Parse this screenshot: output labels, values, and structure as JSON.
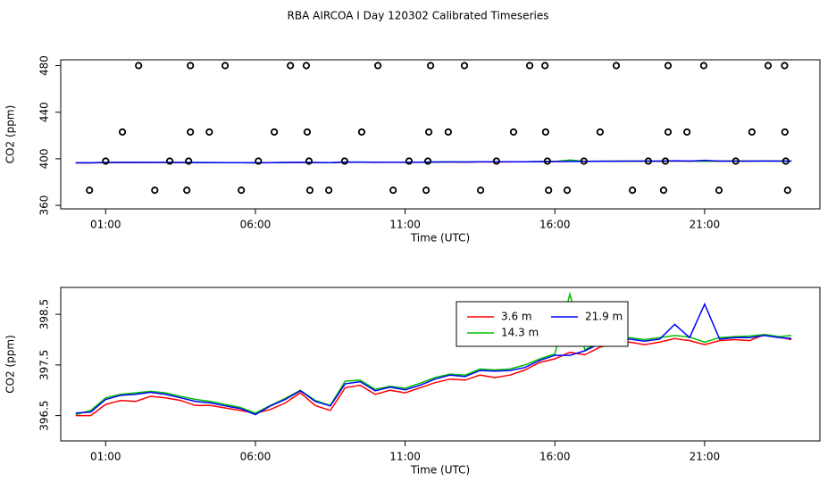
{
  "title": "RBA AIRCOA I  Day 120302  Calibrated Timeseries",
  "chart_data": [
    {
      "type": "scatter",
      "x_label": "Time (UTC)",
      "y_label": "CO2 (ppm)",
      "color": "#000000",
      "x": [
        2.1,
        3.83,
        4.99,
        7.17,
        7.7,
        10.09,
        11.85,
        12.98,
        15.16,
        15.67,
        18.05,
        19.78,
        20.97,
        23.12,
        23.67,
        1.56,
        3.83,
        4.46,
        6.63,
        7.73,
        9.55,
        11.79,
        12.44,
        14.62,
        15.69,
        17.51,
        19.78,
        20.41,
        22.58,
        23.68,
        1.0,
        3.14,
        3.77,
        6.1,
        7.79,
        8.98,
        11.13,
        11.76,
        14.05,
        15.75,
        16.97,
        19.12,
        19.69,
        22.04,
        23.71,
        0.46,
        2.64,
        3.71,
        5.53,
        7.82,
        8.45,
        10.6,
        11.7,
        13.52,
        15.79,
        16.41,
        18.59,
        19.63,
        21.48,
        23.77
      ],
      "values": [
        480,
        480,
        480,
        480,
        480,
        480,
        480,
        480,
        480,
        480,
        480,
        480,
        480,
        480,
        480,
        423,
        423,
        423,
        423,
        423,
        423,
        423,
        423,
        423,
        423,
        423,
        423,
        423,
        423,
        423,
        398,
        398,
        398,
        398,
        398,
        398,
        398,
        398,
        398,
        398,
        398,
        398,
        398,
        398,
        398,
        373,
        373,
        373,
        373,
        373,
        373,
        373,
        373,
        373,
        373,
        373,
        373,
        373,
        373,
        373
      ],
      "xlim": [
        -0.5,
        24.85
      ],
      "ylim": [
        357,
        485
      ],
      "xticks": [
        {
          "value": 1,
          "label": "01:00"
        },
        {
          "value": 6,
          "label": "06:00"
        },
        {
          "value": 11,
          "label": "11:00"
        },
        {
          "value": 16,
          "label": "16:00"
        },
        {
          "value": 21,
          "label": "21:00"
        }
      ],
      "yticks": [
        360,
        400,
        440,
        480
      ]
    },
    {
      "type": "line",
      "x_label": "Time (UTC)",
      "y_label": "CO2 (ppm)",
      "legend": "top-center",
      "x": [
        0,
        0.5,
        1,
        1.5,
        2,
        2.5,
        3,
        3.5,
        4,
        4.5,
        5,
        5.5,
        6,
        6.5,
        7,
        7.5,
        8,
        8.5,
        9,
        9.5,
        10,
        10.5,
        11,
        11.5,
        12,
        12.5,
        13,
        13.5,
        14,
        14.5,
        15,
        15.5,
        16,
        16.5,
        17,
        17.5,
        18,
        18.5,
        19,
        19.5,
        20,
        20.5,
        21,
        21.5,
        22,
        22.5,
        23,
        23.5,
        23.9
      ],
      "series": [
        {
          "name": "3.6 m",
          "color": "#ff0000",
          "values": [
            396.5,
            396.5,
            396.72,
            396.8,
            396.78,
            396.88,
            396.85,
            396.8,
            396.7,
            396.7,
            396.65,
            396.6,
            396.55,
            396.62,
            396.75,
            396.95,
            396.7,
            396.6,
            397.05,
            397.1,
            396.92,
            397.0,
            396.95,
            397.05,
            397.15,
            397.22,
            397.2,
            397.3,
            397.25,
            397.3,
            397.4,
            397.55,
            397.62,
            397.75,
            397.7,
            397.85,
            397.92,
            397.95,
            397.9,
            397.95,
            398.02,
            397.98,
            397.9,
            397.98,
            398.0,
            397.98,
            398.1,
            398.05,
            398.0
          ]
        },
        {
          "name": "14.3 m",
          "color": "#00c000",
          "values": [
            396.52,
            396.6,
            396.85,
            396.92,
            396.95,
            396.98,
            396.95,
            396.88,
            396.82,
            396.78,
            396.72,
            396.66,
            396.55,
            396.7,
            396.84,
            397.0,
            396.8,
            396.7,
            397.18,
            397.2,
            397.02,
            397.08,
            397.04,
            397.14,
            397.25,
            397.32,
            397.3,
            397.42,
            397.4,
            397.42,
            397.5,
            397.62,
            397.72,
            398.9,
            397.8,
            397.95,
            397.98,
            398.04,
            398.0,
            398.04,
            398.08,
            398.05,
            397.95,
            398.04,
            398.06,
            398.07,
            398.1,
            398.06,
            398.08
          ]
        },
        {
          "name": "21.9 m",
          "color": "#0000ff",
          "values": [
            396.55,
            396.57,
            396.82,
            396.9,
            396.92,
            396.96,
            396.92,
            396.85,
            396.78,
            396.75,
            396.69,
            396.64,
            396.52,
            396.69,
            396.82,
            396.99,
            396.78,
            396.69,
            397.13,
            397.17,
            396.99,
            397.06,
            397.01,
            397.1,
            397.22,
            397.3,
            397.27,
            397.39,
            397.38,
            397.39,
            397.45,
            397.59,
            397.69,
            397.69,
            397.78,
            397.92,
            397.96,
            398.01,
            397.97,
            398.01,
            398.3,
            398.04,
            398.7,
            398.01,
            398.04,
            398.04,
            398.08,
            398.04,
            398.02
          ]
        }
      ],
      "xlim": [
        -0.5,
        24.85
      ],
      "ylim": [
        396.0,
        399.03
      ],
      "xticks": [
        {
          "value": 1,
          "label": "01:00"
        },
        {
          "value": 6,
          "label": "06:00"
        },
        {
          "value": 11,
          "label": "11:00"
        },
        {
          "value": 16,
          "label": "16:00"
        },
        {
          "value": 21,
          "label": "21:00"
        }
      ],
      "yticks": [
        396.5,
        397.5,
        398.5
      ]
    }
  ]
}
